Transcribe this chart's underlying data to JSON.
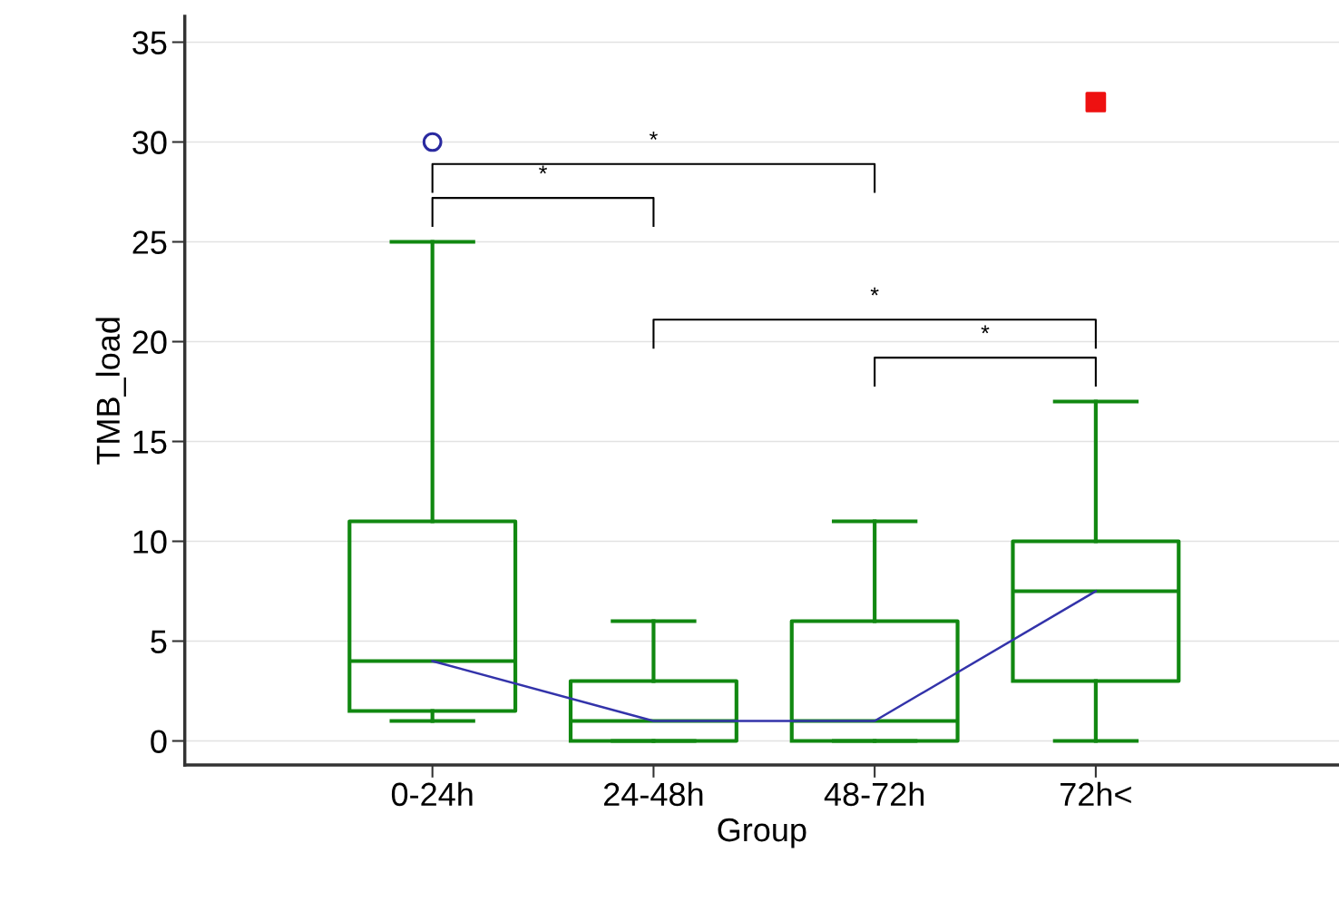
{
  "chart_data": {
    "type": "box",
    "xlabel": "Group",
    "ylabel": "TMB_load",
    "categories": [
      "0-24h",
      "24-48h",
      "48-72h",
      "72h<"
    ],
    "color": "#118811",
    "boxes": [
      {
        "low": 1,
        "q1": 1.5,
        "median": 4,
        "q3": 11,
        "high": 25
      },
      {
        "low": 0,
        "q1": 0,
        "median": 1,
        "q3": 3,
        "high": 6
      },
      {
        "low": 0,
        "q1": 0,
        "median": 1,
        "q3": 6,
        "high": 11
      },
      {
        "low": 0,
        "q1": 3,
        "median": 7.5,
        "q3": 10,
        "high": 17
      }
    ],
    "series": [
      {
        "type": "line",
        "color": "#3333aa",
        "values": [
          4,
          1,
          1,
          7.5
        ],
        "marker": "none"
      },
      {
        "type": "scatter",
        "color": "#2a2aa0",
        "x": [
          "0-24h"
        ],
        "values": [
          30
        ],
        "marker": "circle"
      },
      {
        "type": "scatter",
        "color": "#ee1111",
        "x": [
          "72h<"
        ],
        "values": [
          32
        ],
        "marker": "square"
      }
    ],
    "annotations": [
      "*",
      "*",
      "*",
      "*"
    ],
    "ylim": [
      -1.2,
      36.3
    ],
    "yticks": [
      0,
      5,
      10,
      15,
      20,
      25,
      30,
      35
    ],
    "grid": "y"
  }
}
